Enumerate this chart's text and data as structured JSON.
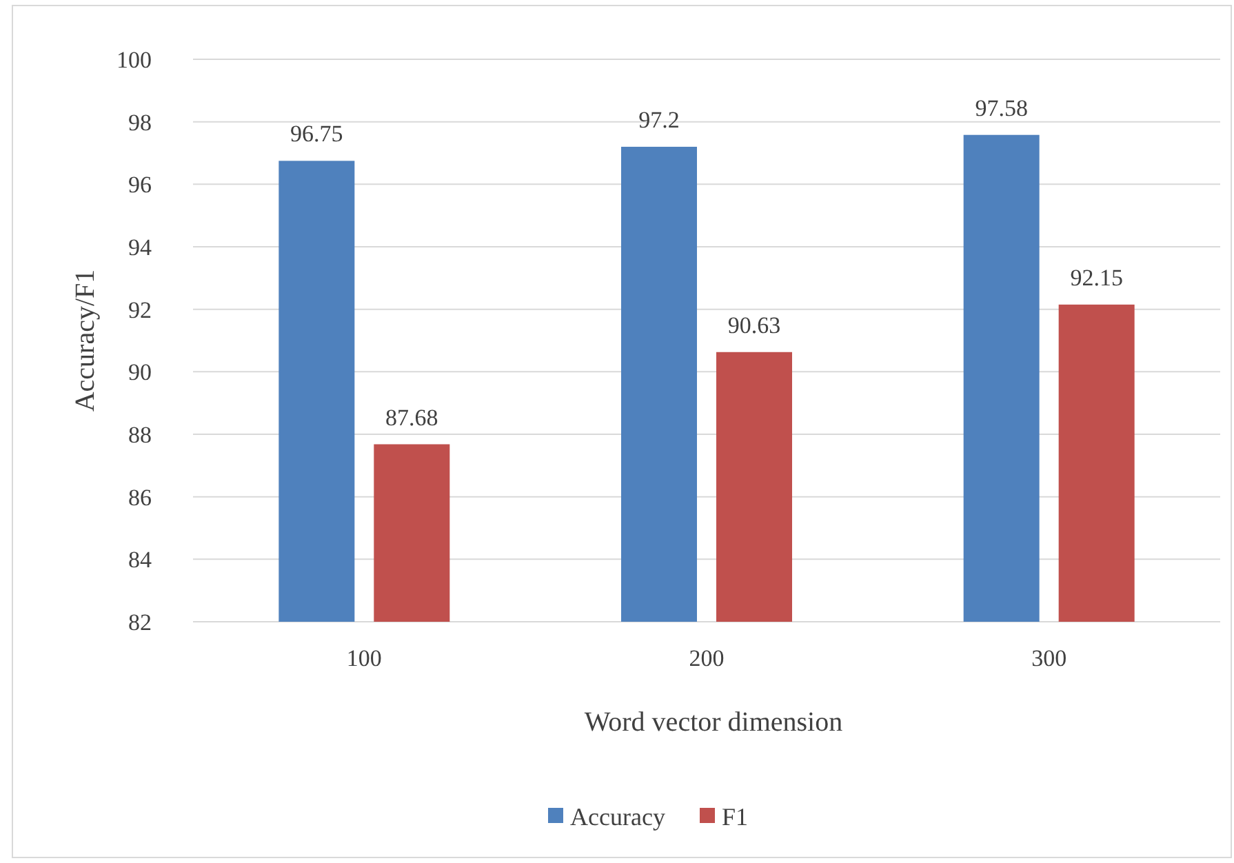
{
  "chart_data": {
    "type": "bar",
    "xlabel": "Word vector dimension",
    "ylabel": "Accuracy/F1",
    "categories": [
      "100",
      "200",
      "300"
    ],
    "series": [
      {
        "name": "Accuracy",
        "color": "#4f81bd",
        "values": [
          96.75,
          97.2,
          97.58
        ]
      },
      {
        "name": "F1",
        "color": "#c0504d",
        "values": [
          87.68,
          90.63,
          92.15
        ]
      }
    ],
    "ylim": [
      82,
      100
    ],
    "yticks": [
      82,
      84,
      86,
      88,
      90,
      92,
      94,
      96,
      98,
      100
    ],
    "grid": "y",
    "legend": "bottom",
    "data_labels": true
  }
}
